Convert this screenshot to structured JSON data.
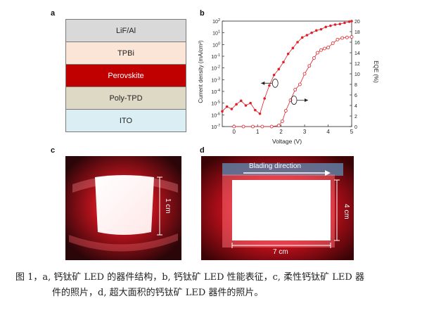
{
  "panel_a": {
    "label": "a",
    "layers": [
      {
        "name": "LiF/Al",
        "color": "#d9d9d9"
      },
      {
        "name": "TPBi",
        "color": "#fbe5d6"
      },
      {
        "name": "Perovskite",
        "color": "#c00000"
      },
      {
        "name": "Poly-TPD",
        "color": "#ddd9c4"
      },
      {
        "name": "ITO",
        "color": "#daeef3"
      }
    ]
  },
  "panel_b": {
    "label": "b",
    "chart_data": {
      "type": "scatter",
      "xlabel": "Voltage (V)",
      "ylabel_left": "Current density (mA/cm²)",
      "ylabel_right": "EQE (%)",
      "xlim": [
        -0.5,
        5
      ],
      "xticks": [
        0,
        1,
        2,
        3,
        4,
        5
      ],
      "y_left_scale": "log",
      "y_left_lim_exp": [
        -7,
        2
      ],
      "y_left_tick_exps": [
        -7,
        -6,
        -5,
        -4,
        -3,
        -2,
        -1,
        0,
        1,
        2
      ],
      "y_right_lim": [
        0,
        20
      ],
      "y_right_ticks": [
        0,
        2,
        4,
        6,
        8,
        10,
        12,
        14,
        16,
        18,
        20
      ],
      "series": [
        {
          "name": "",
          "axis": "left",
          "marker": "filled",
          "color": "#e0202a",
          "x": [
            -0.5,
            -0.3,
            -0.1,
            0.1,
            0.3,
            0.5,
            0.7,
            0.9,
            1.1,
            1.3,
            1.5,
            1.7,
            1.9,
            2.1,
            2.3,
            2.5,
            2.7,
            2.9,
            3.1,
            3.3,
            3.5,
            3.7,
            3.9,
            4.1,
            4.3,
            4.5,
            4.7,
            4.9,
            5.0
          ],
          "log10_y": [
            -5.7,
            -5.3,
            -5.5,
            -5.1,
            -4.8,
            -5.2,
            -5.0,
            -5.6,
            -5.9,
            -4.6,
            -3.5,
            -2.6,
            -2.1,
            -1.5,
            -0.8,
            -0.3,
            0.2,
            0.6,
            0.8,
            1.0,
            1.2,
            1.3,
            1.5,
            1.6,
            1.7,
            1.75,
            1.85,
            1.95,
            2.0
          ]
        },
        {
          "name": "",
          "axis": "right",
          "marker": "open",
          "color": "#e0202a",
          "x": [
            0.0,
            0.4,
            0.8,
            1.2,
            1.6,
            1.9,
            2.05,
            2.2,
            2.4,
            2.6,
            2.8,
            3.0,
            3.2,
            3.4,
            3.55,
            3.7,
            3.85,
            4.0,
            4.2,
            4.4,
            4.6,
            4.8,
            5.0
          ],
          "y": [
            0,
            0,
            0,
            0,
            0,
            0.2,
            1.0,
            3.0,
            5.0,
            7.0,
            8.0,
            10.0,
            11.5,
            13.0,
            14.0,
            14.5,
            14.8,
            15.0,
            15.8,
            16.5,
            16.8,
            16.9,
            17.0
          ]
        }
      ]
    }
  },
  "panel_c": {
    "label": "c",
    "scale_label": "1 cm"
  },
  "panel_d": {
    "label": "d",
    "direction_label": "Blading direction",
    "height_label": "4 cm",
    "width_label": "7 cm"
  },
  "caption": {
    "line1": "图 1，a, 钙钛矿 LED 的器件结构，b, 钙钛矿 LED 性能表征，c, 柔性钙钛矿 LED 器",
    "line2": "件的照片，d, 超大面积的钙钛矿 LED 器件的照片。"
  }
}
